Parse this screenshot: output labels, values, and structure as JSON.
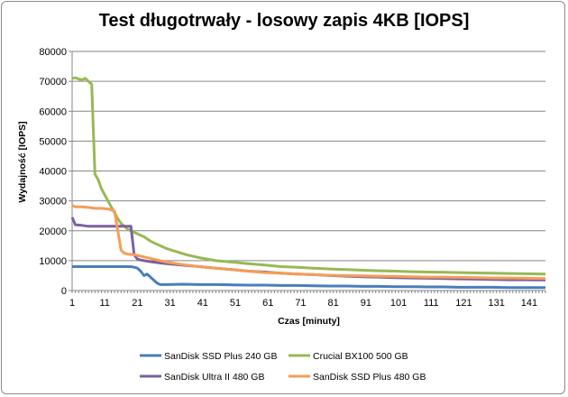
{
  "chart_data": {
    "type": "line",
    "title": "Test długotrwały - losowy zapis 4KB [IOPS]",
    "xlabel": "Czas [minuty]",
    "ylabel": "Wydajność [IOPS]",
    "xlim": [
      1,
      146
    ],
    "ylim": [
      0,
      80000
    ],
    "x_ticks": [
      "1",
      "11",
      "21",
      "31",
      "41",
      "51",
      "61",
      "71",
      "81",
      "91",
      "101",
      "111",
      "121",
      "131",
      "141"
    ],
    "y_ticks": [
      "0",
      "10000",
      "20000",
      "30000",
      "40000",
      "50000",
      "60000",
      "70000",
      "80000"
    ],
    "grid": true,
    "legend_position": "bottom",
    "series": [
      {
        "name": "SanDisk SSD Plus 240 GB",
        "color": "#4a7ebb",
        "points": [
          [
            1,
            8000
          ],
          [
            5,
            8000
          ],
          [
            10,
            8000
          ],
          [
            15,
            8000
          ],
          [
            19,
            8000
          ],
          [
            20,
            7800
          ],
          [
            21,
            7500
          ],
          [
            22,
            6500
          ],
          [
            23,
            5000
          ],
          [
            24,
            5500
          ],
          [
            25,
            4500
          ],
          [
            26,
            3500
          ],
          [
            27,
            2500
          ],
          [
            28,
            2000
          ],
          [
            30,
            2000
          ],
          [
            35,
            2100
          ],
          [
            40,
            2000
          ],
          [
            45,
            2000
          ],
          [
            50,
            1900
          ],
          [
            55,
            1800
          ],
          [
            60,
            1800
          ],
          [
            65,
            1700
          ],
          [
            70,
            1700
          ],
          [
            75,
            1600
          ],
          [
            80,
            1500
          ],
          [
            85,
            1500
          ],
          [
            90,
            1400
          ],
          [
            95,
            1400
          ],
          [
            100,
            1300
          ],
          [
            105,
            1300
          ],
          [
            110,
            1200
          ],
          [
            115,
            1200
          ],
          [
            120,
            1100
          ],
          [
            125,
            1100
          ],
          [
            130,
            1100
          ],
          [
            135,
            1000
          ],
          [
            140,
            1000
          ],
          [
            146,
            1000
          ]
        ]
      },
      {
        "name": "Crucial BX100 500 GB",
        "color": "#98b954",
        "points": [
          [
            1,
            71000
          ],
          [
            2,
            71200
          ],
          [
            3,
            70800
          ],
          [
            4,
            70500
          ],
          [
            5,
            71000
          ],
          [
            6,
            70000
          ],
          [
            7,
            69000
          ],
          [
            8,
            39000
          ],
          [
            9,
            37000
          ],
          [
            10,
            34000
          ],
          [
            11,
            32000
          ],
          [
            12,
            30000
          ],
          [
            13,
            28000
          ],
          [
            14,
            26000
          ],
          [
            15,
            24000
          ],
          [
            16,
            22500
          ],
          [
            17,
            21500
          ],
          [
            18,
            20500
          ],
          [
            19,
            20000
          ],
          [
            20,
            19500
          ],
          [
            21,
            19000
          ],
          [
            23,
            18000
          ],
          [
            25,
            16500
          ],
          [
            27,
            15500
          ],
          [
            30,
            14000
          ],
          [
            33,
            13000
          ],
          [
            36,
            12000
          ],
          [
            40,
            11000
          ],
          [
            45,
            10000
          ],
          [
            50,
            9500
          ],
          [
            55,
            9000
          ],
          [
            60,
            8500
          ],
          [
            65,
            8000
          ],
          [
            70,
            7800
          ],
          [
            75,
            7500
          ],
          [
            80,
            7200
          ],
          [
            85,
            7000
          ],
          [
            90,
            6800
          ],
          [
            95,
            6600
          ],
          [
            100,
            6500
          ],
          [
            105,
            6300
          ],
          [
            110,
            6200
          ],
          [
            115,
            6100
          ],
          [
            120,
            6000
          ],
          [
            125,
            5900
          ],
          [
            130,
            5800
          ],
          [
            135,
            5700
          ],
          [
            140,
            5600
          ],
          [
            146,
            5500
          ]
        ]
      },
      {
        "name": "SanDisk Ultra II 480 GB",
        "color": "#7d60a0",
        "points": [
          [
            1,
            24500
          ],
          [
            2,
            22000
          ],
          [
            4,
            21800
          ],
          [
            6,
            21500
          ],
          [
            8,
            21500
          ],
          [
            10,
            21500
          ],
          [
            12,
            21500
          ],
          [
            14,
            21500
          ],
          [
            16,
            21500
          ],
          [
            18,
            21500
          ],
          [
            19,
            21500
          ],
          [
            20,
            12000
          ],
          [
            21,
            10500
          ],
          [
            22,
            10200
          ],
          [
            24,
            9800
          ],
          [
            26,
            9500
          ],
          [
            28,
            9200
          ],
          [
            30,
            9000
          ],
          [
            33,
            8700
          ],
          [
            36,
            8400
          ],
          [
            40,
            8000
          ],
          [
            45,
            7500
          ],
          [
            50,
            7000
          ],
          [
            55,
            6500
          ],
          [
            60,
            6200
          ],
          [
            65,
            5800
          ],
          [
            70,
            5500
          ],
          [
            75,
            5300
          ],
          [
            80,
            5000
          ],
          [
            85,
            4800
          ],
          [
            90,
            4600
          ],
          [
            95,
            4500
          ],
          [
            100,
            4300
          ],
          [
            105,
            4200
          ],
          [
            110,
            4100
          ],
          [
            115,
            4000
          ],
          [
            120,
            3900
          ],
          [
            125,
            3800
          ],
          [
            130,
            3700
          ],
          [
            135,
            3600
          ],
          [
            140,
            3600
          ],
          [
            146,
            3500
          ]
        ]
      },
      {
        "name": "SanDisk SSD Plus 480 GB",
        "color": "#f59d56",
        "points": [
          [
            1,
            28500
          ],
          [
            2,
            28000
          ],
          [
            4,
            28000
          ],
          [
            6,
            27800
          ],
          [
            8,
            27500
          ],
          [
            10,
            27500
          ],
          [
            12,
            27300
          ],
          [
            13,
            27000
          ],
          [
            14,
            26500
          ],
          [
            15,
            20000
          ],
          [
            16,
            13500
          ],
          [
            17,
            12500
          ],
          [
            18,
            12200
          ],
          [
            20,
            12000
          ],
          [
            22,
            11500
          ],
          [
            24,
            11000
          ],
          [
            26,
            10500
          ],
          [
            28,
            10000
          ],
          [
            30,
            9500
          ],
          [
            33,
            9000
          ],
          [
            36,
            8500
          ],
          [
            40,
            8000
          ],
          [
            45,
            7500
          ],
          [
            50,
            7000
          ],
          [
            55,
            6500
          ],
          [
            60,
            6000
          ],
          [
            65,
            5800
          ],
          [
            70,
            5500
          ],
          [
            75,
            5300
          ],
          [
            80,
            5100
          ],
          [
            85,
            5000
          ],
          [
            90,
            4900
          ],
          [
            95,
            4800
          ],
          [
            100,
            4700
          ],
          [
            105,
            4600
          ],
          [
            110,
            4500
          ],
          [
            115,
            4500
          ],
          [
            120,
            4400
          ],
          [
            125,
            4300
          ],
          [
            130,
            4200
          ],
          [
            135,
            4200
          ],
          [
            140,
            4100
          ],
          [
            146,
            4000
          ]
        ]
      }
    ]
  }
}
